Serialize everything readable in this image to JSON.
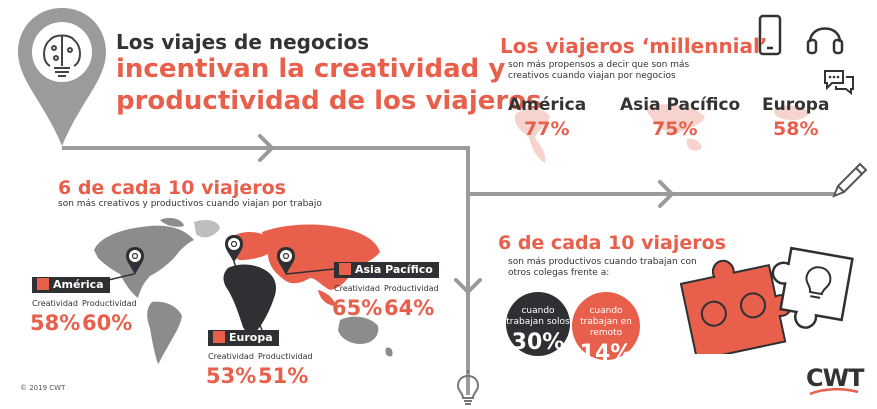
{
  "header": {
    "line1": "Los viajes de negocios",
    "line2": "incentivan la creatividad y",
    "line3": "productividad de los viajeros"
  },
  "millennial": {
    "title": "Los viajeros ‘millennial’",
    "subtitle": "son más propensos a decir que son más creativos cuando viajan por negocios",
    "regions": [
      {
        "name": "América",
        "value": "77%"
      },
      {
        "name": "Asia Pacífico",
        "value": "75%"
      },
      {
        "name": "Europa",
        "value": "58%"
      }
    ]
  },
  "creative": {
    "title": "6 de cada 10 viajeros",
    "subtitle": "son más creativos y productivos cuando viajan por trabajo",
    "creatividad_label": "Creatividad",
    "productividad_label": "Productividad",
    "regions": [
      {
        "name": "América",
        "creatividad": "58%",
        "productividad": "60%"
      },
      {
        "name": "Europa",
        "creatividad": "53%",
        "productividad": "51%"
      },
      {
        "name": "Asia Pacífico",
        "creatividad": "65%",
        "productividad": "64%"
      }
    ]
  },
  "colleagues": {
    "title": "6 de cada 10 viajeros",
    "subtitle": "son más productivos cuando trabajan con otros colegas frente a:",
    "alone_label": "cuando trabajan solos",
    "alone_value": "30%",
    "remote_label": "cuando trabajan en remoto",
    "remote_value": "14%"
  },
  "footer": {
    "copyright": "© 2019 CWT",
    "logo": "CWT"
  },
  "colors": {
    "accent": "#e8604c",
    "dark": "#2f3033",
    "grey": "#8c8c8c",
    "line": "#9b9b9b"
  }
}
